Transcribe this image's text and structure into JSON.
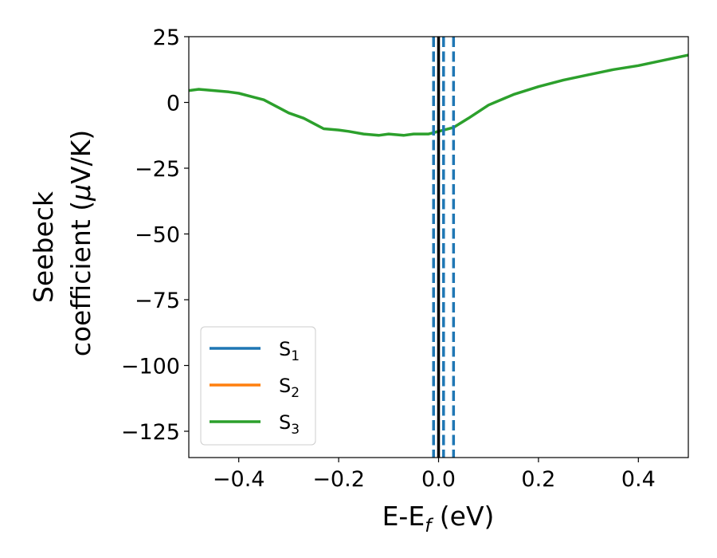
{
  "chart_data": {
    "type": "line",
    "title": "",
    "xlabel": {
      "main": "E-E",
      "sub": "f",
      "rest": " (eV)"
    },
    "ylabel": {
      "line1": "Seebeck",
      "line2_pre": "coefficient  (",
      "mu": "μ",
      "line2_post": "V/K)"
    },
    "xlim": [
      -0.5,
      0.5
    ],
    "ylim": [
      -135,
      25
    ],
    "xticks": [
      -0.4,
      -0.2,
      0.0,
      0.2,
      0.4
    ],
    "xtick_labels": [
      "−0.4",
      "−0.2",
      "0.0",
      "0.2",
      "0.4"
    ],
    "yticks": [
      25,
      0,
      -25,
      -50,
      -75,
      -100,
      -125
    ],
    "ytick_labels": [
      "25",
      "0",
      "−25",
      "−50",
      "−75",
      "−100",
      "−125"
    ],
    "legend_position": "lower-left",
    "series": [
      {
        "name": "S",
        "sub": "1",
        "color": "#1f77b4"
      },
      {
        "name": "S",
        "sub": "2",
        "color": "#ff7f0e"
      },
      {
        "name": "S",
        "sub": "3",
        "color": "#2ca02c",
        "x": [
          -0.5,
          -0.48,
          -0.45,
          -0.42,
          -0.4,
          -0.37,
          -0.35,
          -0.32,
          -0.3,
          -0.27,
          -0.25,
          -0.23,
          -0.2,
          -0.18,
          -0.15,
          -0.12,
          -0.1,
          -0.07,
          -0.05,
          -0.02,
          0.0,
          0.03,
          0.06,
          0.1,
          0.15,
          0.2,
          0.25,
          0.3,
          0.35,
          0.4,
          0.45,
          0.5
        ],
        "y": [
          4.5,
          5,
          4.5,
          4,
          3.5,
          2,
          1,
          -2,
          -4,
          -6,
          -8,
          -10,
          -10.5,
          -11,
          -12,
          -12.5,
          -12,
          -12.5,
          -12,
          -12,
          -11,
          -9.5,
          -6,
          -1,
          3,
          6,
          8.5,
          10.5,
          12.5,
          14,
          16,
          18
        ]
      }
    ],
    "vertical_lines": [
      {
        "x": 0.0,
        "style": "solid",
        "color": "#000000"
      },
      {
        "x": -0.01,
        "style": "dashed",
        "color": "#1f77b4"
      },
      {
        "x": 0.01,
        "style": "dashed",
        "color": "#1f77b4"
      },
      {
        "x": 0.03,
        "style": "dashed",
        "color": "#1f77b4"
      }
    ]
  }
}
